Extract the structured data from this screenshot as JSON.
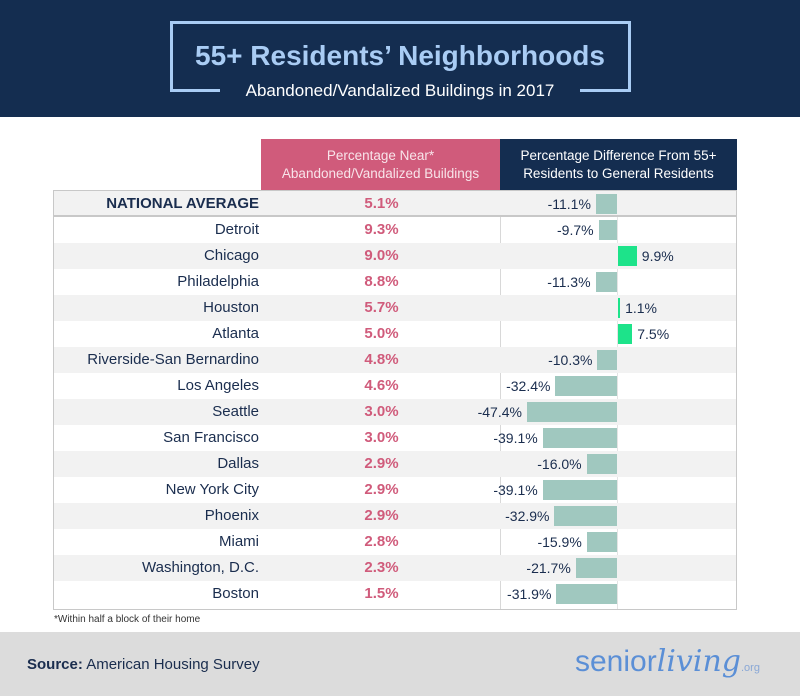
{
  "header": {
    "title": "55+ Residents’ Neighborhoods",
    "subtitle": "Abandoned/Vandalized Buildings in 2017"
  },
  "columns": {
    "pct_near": "Percentage Near* Abandoned/Vandalized Buildings",
    "pct_near_line1": "Percentage Near*",
    "pct_near_line2": "Abandoned/Vandalized Buildings",
    "pct_diff_line1": "Percentage Difference From 55+",
    "pct_diff_line2": "Residents to General Residents"
  },
  "colors": {
    "navy": "#142d50",
    "pink": "#d05b7b",
    "light_blue": "#a9ccf4",
    "neg_bar": "#a0c8bf",
    "pos_bar": "#1de38a"
  },
  "chart_data": {
    "type": "table",
    "title": "55+ Residents’ Neighborhoods",
    "subtitle": "Abandoned/Vandalized Buildings in 2017",
    "rows": [
      {
        "name": "NATIONAL AVERAGE",
        "pct": "5.1%",
        "diff": -11.1,
        "diff_label": "-11.1%",
        "bold": true
      },
      {
        "name": "Detroit",
        "pct": "9.3%",
        "diff": -9.7,
        "diff_label": "-9.7%"
      },
      {
        "name": "Chicago",
        "pct": "9.0%",
        "diff": 9.9,
        "diff_label": "9.9%"
      },
      {
        "name": "Philadelphia",
        "pct": "8.8%",
        "diff": -11.3,
        "diff_label": "-11.3%"
      },
      {
        "name": "Houston",
        "pct": "5.7%",
        "diff": 1.1,
        "diff_label": "1.1%"
      },
      {
        "name": "Atlanta",
        "pct": "5.0%",
        "diff": 7.5,
        "diff_label": "7.5%"
      },
      {
        "name": "Riverside-San Bernardino",
        "pct": "4.8%",
        "diff": -10.3,
        "diff_label": "-10.3%"
      },
      {
        "name": "Los Angeles",
        "pct": "4.6%",
        "diff": -32.4,
        "diff_label": "-32.4%"
      },
      {
        "name": "Seattle",
        "pct": "3.0%",
        "diff": -47.4,
        "diff_label": "-47.4%"
      },
      {
        "name": "San Francisco",
        "pct": "3.0%",
        "diff": -39.1,
        "diff_label": "-39.1%"
      },
      {
        "name": "Dallas",
        "pct": "2.9%",
        "diff": -16.0,
        "diff_label": "-16.0%"
      },
      {
        "name": "New York City",
        "pct": "2.9%",
        "diff": -39.1,
        "diff_label": "-39.1%"
      },
      {
        "name": "Phoenix",
        "pct": "2.9%",
        "diff": -32.9,
        "diff_label": "-32.9%"
      },
      {
        "name": "Miami",
        "pct": "2.8%",
        "diff": -15.9,
        "diff_label": "-15.9%"
      },
      {
        "name": "Washington, D.C.",
        "pct": "2.3%",
        "diff": -21.7,
        "diff_label": "-21.7%"
      },
      {
        "name": "Boston",
        "pct": "1.5%",
        "diff": -31.9,
        "diff_label": "-31.9%"
      }
    ]
  },
  "footnote": "*Within half a block of their home",
  "footer": {
    "source_label": "Source:",
    "source_value": "American Housing Survey",
    "logo_a": "senior",
    "logo_b": "living",
    "logo_c": ".org"
  }
}
